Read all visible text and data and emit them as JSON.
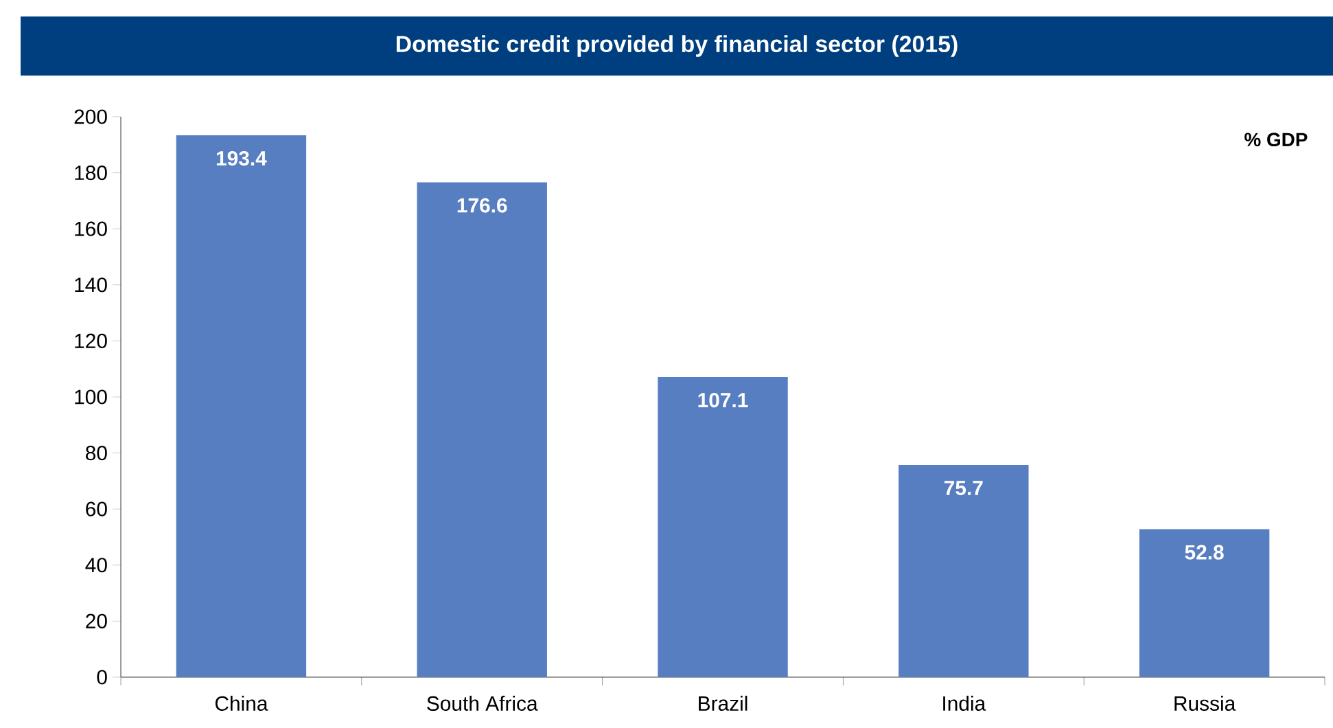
{
  "chart_data": {
    "type": "bar",
    "title": "Domestic credit provided by financial  sector (2015)",
    "ylabel": "% GDP",
    "categories": [
      "China",
      "South Africa",
      "Brazil",
      "India",
      "Russia"
    ],
    "values": [
      193.4,
      176.6,
      107.1,
      75.7,
      52.8
    ],
    "color": "#587ec2",
    "data_labels": true,
    "ylim": [
      0,
      200
    ],
    "yticks": [
      0,
      20,
      40,
      60,
      80,
      100,
      120,
      140,
      160,
      180,
      200
    ]
  }
}
